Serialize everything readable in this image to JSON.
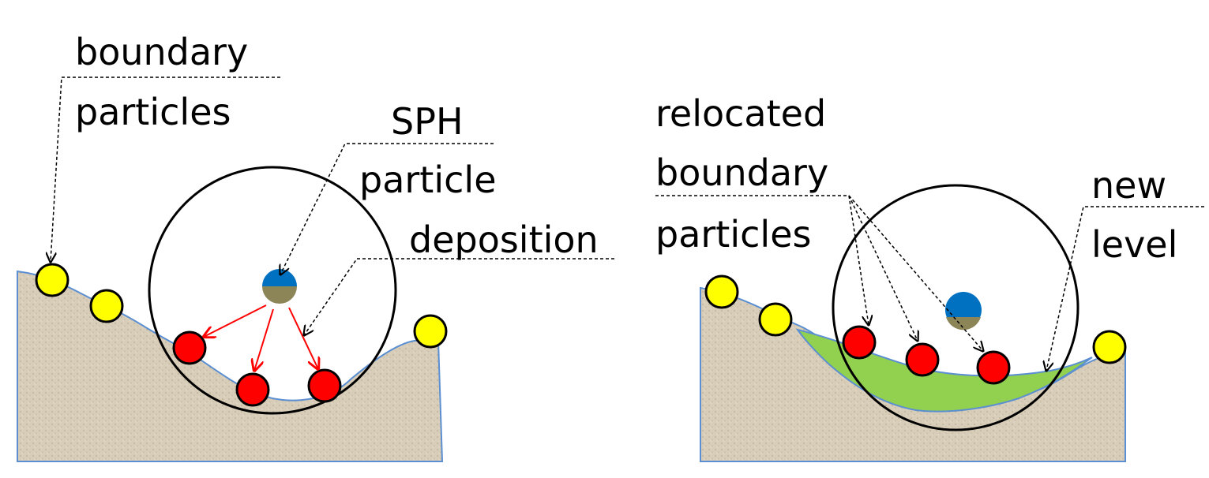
{
  "colors": {
    "terrain_fill": "#d8cdb9",
    "terrain_edge": "#5b8fd1",
    "deposit": "#92d050",
    "boundary_particle": "#ffff00",
    "relocated_particle": "#ff0000",
    "water": "#0070c0",
    "sediment": "#8b8558",
    "arrow_red": "#ff0000",
    "leader": "#000000"
  },
  "left_panel": {
    "label_boundary_line1": "boundary",
    "label_boundary_line2": "particles",
    "label_sph_line1": "SPH",
    "label_sph_line2": "particle",
    "label_deposition": "deposition"
  },
  "right_panel": {
    "label_relocated_line1": "relocated",
    "label_relocated_line2": "boundary",
    "label_relocated_line3": "particles",
    "label_new_line1": "new",
    "label_new_line2": "level"
  }
}
